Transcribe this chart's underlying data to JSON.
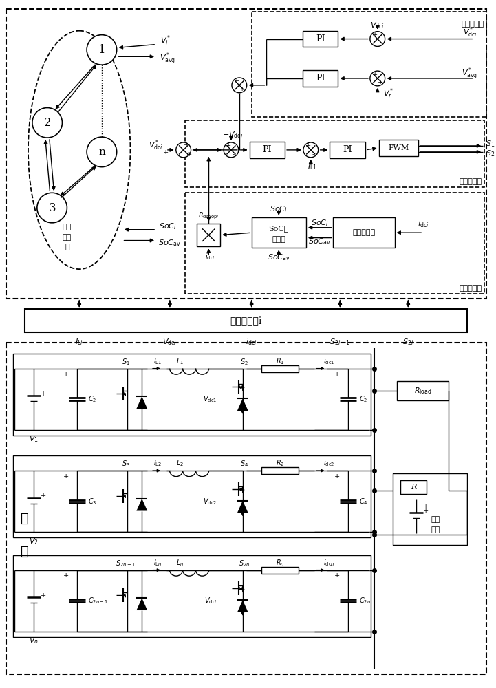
{
  "fig_width": 7.21,
  "fig_height": 10.0,
  "labels": {
    "secondary": "二次控制层",
    "primary": "一次控制层",
    "dual_loop": "双闭环控制",
    "consensus": "一致\n性算\n法",
    "controller": "储能控制器i",
    "soc_eq1": "SoC均",
    "soc_eq2": "流算法",
    "amp_hr": "安时积分法",
    "charging1": "充电",
    "charging2": "单元"
  }
}
